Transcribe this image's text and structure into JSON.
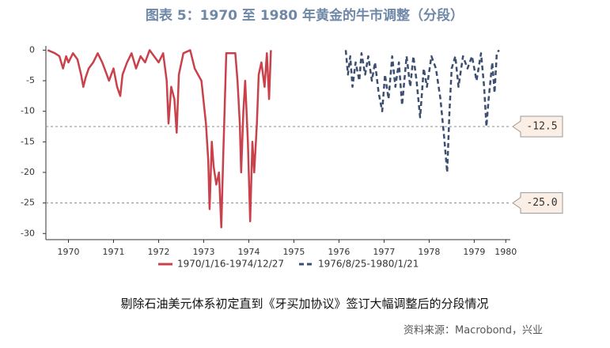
{
  "chart_data": {
    "type": "line",
    "title": "图表 5：1970 至 1980 年黄金的牛市调整（分段）",
    "subtitle": "剔除石油美元体系初定直到《牙买加协议》签订大幅调整后的分段情况",
    "source": "资料来源：Macrobond，兴业",
    "xlim": [
      1970,
      1980.3
    ],
    "ylim": [
      -31,
      0.7
    ],
    "yticks": [
      0,
      -5,
      -10,
      -15,
      -20,
      -25,
      -30
    ],
    "xticks": [
      {
        "value": 1970.5,
        "label": "1970"
      },
      {
        "value": 1971.5,
        "label": "1971"
      },
      {
        "value": 1972.5,
        "label": "1972"
      },
      {
        "value": 1973.5,
        "label": "1973"
      },
      {
        "value": 1974.5,
        "label": "1974"
      },
      {
        "value": 1975.5,
        "label": "1975"
      },
      {
        "value": 1976.5,
        "label": "1976"
      },
      {
        "value": 1977.5,
        "label": "1977"
      },
      {
        "value": 1978.5,
        "label": "1978"
      },
      {
        "value": 1979.5,
        "label": "1979"
      },
      {
        "value": 1980.2,
        "label": "1980"
      }
    ],
    "reference_lines": [
      {
        "value": -12.5,
        "label": "-12.5"
      },
      {
        "value": -25,
        "label": "-25.0"
      }
    ],
    "series": [
      {
        "name": "1970/1/16-1974/12/27",
        "color": "#c8414b",
        "dash": false,
        "x": [
          1970.04,
          1970.2,
          1970.3,
          1970.38,
          1970.45,
          1970.5,
          1970.6,
          1970.7,
          1970.78,
          1970.83,
          1970.88,
          1970.95,
          1971.05,
          1971.15,
          1971.25,
          1971.3,
          1971.4,
          1971.5,
          1971.58,
          1971.65,
          1971.7,
          1971.8,
          1971.9,
          1972.0,
          1972.1,
          1972.2,
          1972.3,
          1972.4,
          1972.5,
          1972.6,
          1972.68,
          1972.72,
          1972.78,
          1972.85,
          1972.9,
          1972.95,
          1973.05,
          1973.2,
          1973.3,
          1973.45,
          1973.55,
          1973.6,
          1973.63,
          1973.68,
          1973.72,
          1973.78,
          1973.84,
          1973.89,
          1973.93,
          1973.97,
          1974.0,
          1974.1,
          1974.2,
          1974.25,
          1974.3,
          1974.33,
          1974.38,
          1974.42,
          1974.48,
          1974.53,
          1974.58,
          1974.62,
          1974.68,
          1974.72,
          1974.78,
          1974.85,
          1974.9,
          1974.95,
          1974.99
        ],
        "values": [
          0,
          -0.5,
          -1,
          -3,
          -1,
          -2,
          -0.5,
          -1.5,
          -4,
          -6,
          -4.5,
          -3,
          -2,
          -0.5,
          -2,
          -3,
          -5,
          -3,
          -6,
          -7.5,
          -4,
          -2,
          -0.5,
          -3,
          -1,
          -2,
          0,
          -1,
          -2,
          -0.5,
          -5,
          -12,
          -6,
          -8,
          -13.5,
          -4,
          -0.5,
          0,
          -3,
          -5,
          -12,
          -18,
          -26,
          -15,
          -19,
          -22,
          -20,
          -29,
          -18,
          -8,
          -0.5,
          -0.5,
          -0.5,
          -5,
          -12,
          -20,
          -10,
          -5,
          -15,
          -28,
          -15,
          -20,
          -12,
          -4,
          -2,
          -6,
          -0.5,
          -8,
          0
        ]
      },
      {
        "name": "1976/8/25-1980/1/21",
        "color": "#3d4f70",
        "dash": true,
        "x": [
          1976.65,
          1976.7,
          1976.75,
          1976.8,
          1976.87,
          1976.95,
          1977.0,
          1977.08,
          1977.15,
          1977.23,
          1977.3,
          1977.38,
          1977.46,
          1977.52,
          1977.6,
          1977.68,
          1977.75,
          1977.83,
          1977.9,
          1978.0,
          1978.08,
          1978.15,
          1978.22,
          1978.3,
          1978.38,
          1978.45,
          1978.55,
          1978.65,
          1978.75,
          1978.83,
          1978.9,
          1978.95,
          1979.0,
          1979.08,
          1979.15,
          1979.25,
          1979.35,
          1979.45,
          1979.55,
          1979.65,
          1979.72,
          1979.77,
          1979.82,
          1979.9,
          1979.95,
          1980.0,
          1980.05
        ],
        "values": [
          0,
          -4,
          -1,
          -6,
          -2,
          -5,
          -0.5,
          -4,
          -1,
          -5,
          -2,
          -7,
          -10,
          -4,
          -8,
          -1,
          -6,
          -2,
          -9,
          -1,
          -6,
          -1,
          -5,
          -11,
          -3,
          -6,
          -1,
          -3,
          -8,
          -14,
          -20,
          -10,
          -3,
          -1,
          -6,
          -1,
          -3,
          -1,
          -5,
          -0.5,
          -6,
          -12.5,
          -8,
          -2,
          -7,
          -0.5,
          0
        ]
      }
    ]
  }
}
